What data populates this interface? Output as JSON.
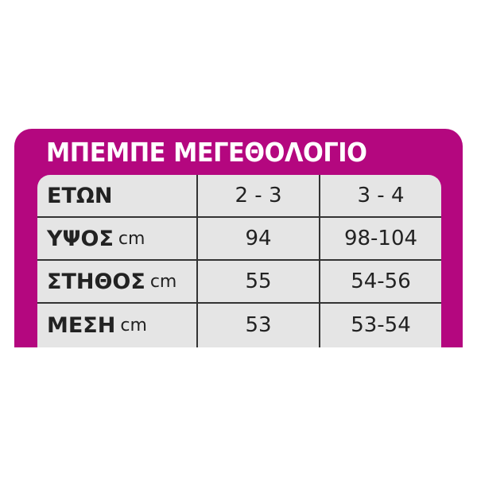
{
  "title": "ΜΠΕΜΠΕ ΜΕΓΕΘΟΛΟΓΙΟ",
  "colors": {
    "panel": "#b4077f",
    "table": "#e5e5e5",
    "text": "#222222"
  },
  "rows": [
    {
      "label": "ΕΤΩΝ",
      "unit": "",
      "values": [
        "2 - 3",
        "3 - 4"
      ]
    },
    {
      "label": "ΥΨΟΣ",
      "unit": "cm",
      "values": [
        "94",
        "98-104"
      ]
    },
    {
      "label": "ΣΤΗΘΟΣ",
      "unit": "cm",
      "values": [
        "55",
        "54-56"
      ]
    },
    {
      "label": "ΜΕΣΗ",
      "unit": "cm",
      "values": [
        "53",
        "53-54"
      ]
    }
  ]
}
